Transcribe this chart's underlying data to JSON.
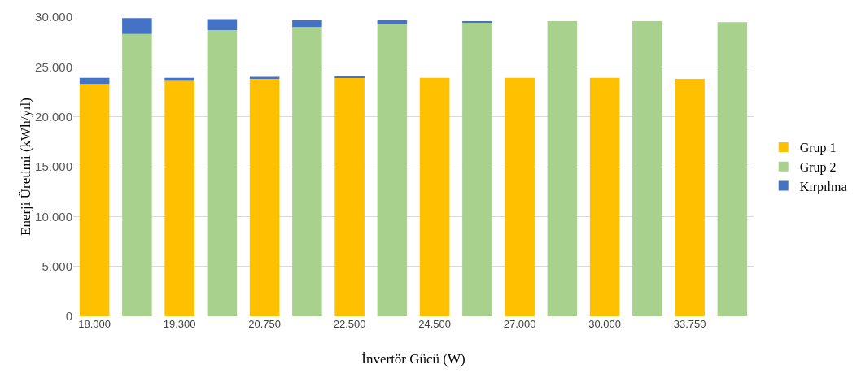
{
  "chart_data": {
    "type": "bar",
    "stacked": true,
    "xlabel": "İnvertör Gücü (W)",
    "ylabel": "Enerji Üretimi (kWh/yıl)",
    "categories": [
      "18.000",
      null,
      "19.300",
      null,
      "20.750",
      null,
      "22.500",
      null,
      "24.500",
      null,
      "27.000",
      null,
      "30.000",
      null,
      "33.750",
      null
    ],
    "series": [
      {
        "name": "Grup 1",
        "color": "#ffc000",
        "values": [
          23300,
          null,
          23600,
          null,
          23800,
          null,
          23900,
          null,
          23900,
          null,
          23900,
          null,
          23900,
          null,
          23800,
          null
        ]
      },
      {
        "name": "Grup 2",
        "color": "#a9d18e",
        "values": [
          null,
          28300,
          null,
          28700,
          null,
          29000,
          null,
          29300,
          null,
          29500,
          null,
          29600,
          null,
          29600,
          null,
          29500
        ]
      },
      {
        "name": "Kırpılma",
        "color": "#4472c4",
        "values": [
          600,
          1600,
          300,
          1100,
          200,
          700,
          100,
          400,
          0,
          100,
          0,
          0,
          0,
          0,
          0,
          0
        ]
      }
    ],
    "ylim": [
      0,
      30000
    ],
    "yticks": [
      {
        "value": 0,
        "label": "0"
      },
      {
        "value": 5000,
        "label": "5.000"
      },
      {
        "value": 10000,
        "label": "10.000"
      },
      {
        "value": 15000,
        "label": "15.000"
      },
      {
        "value": 20000,
        "label": "20.000"
      },
      {
        "value": 25000,
        "label": "25.000"
      },
      {
        "value": 30000,
        "label": "30.000"
      }
    ],
    "grid": "y",
    "legend": "right"
  }
}
